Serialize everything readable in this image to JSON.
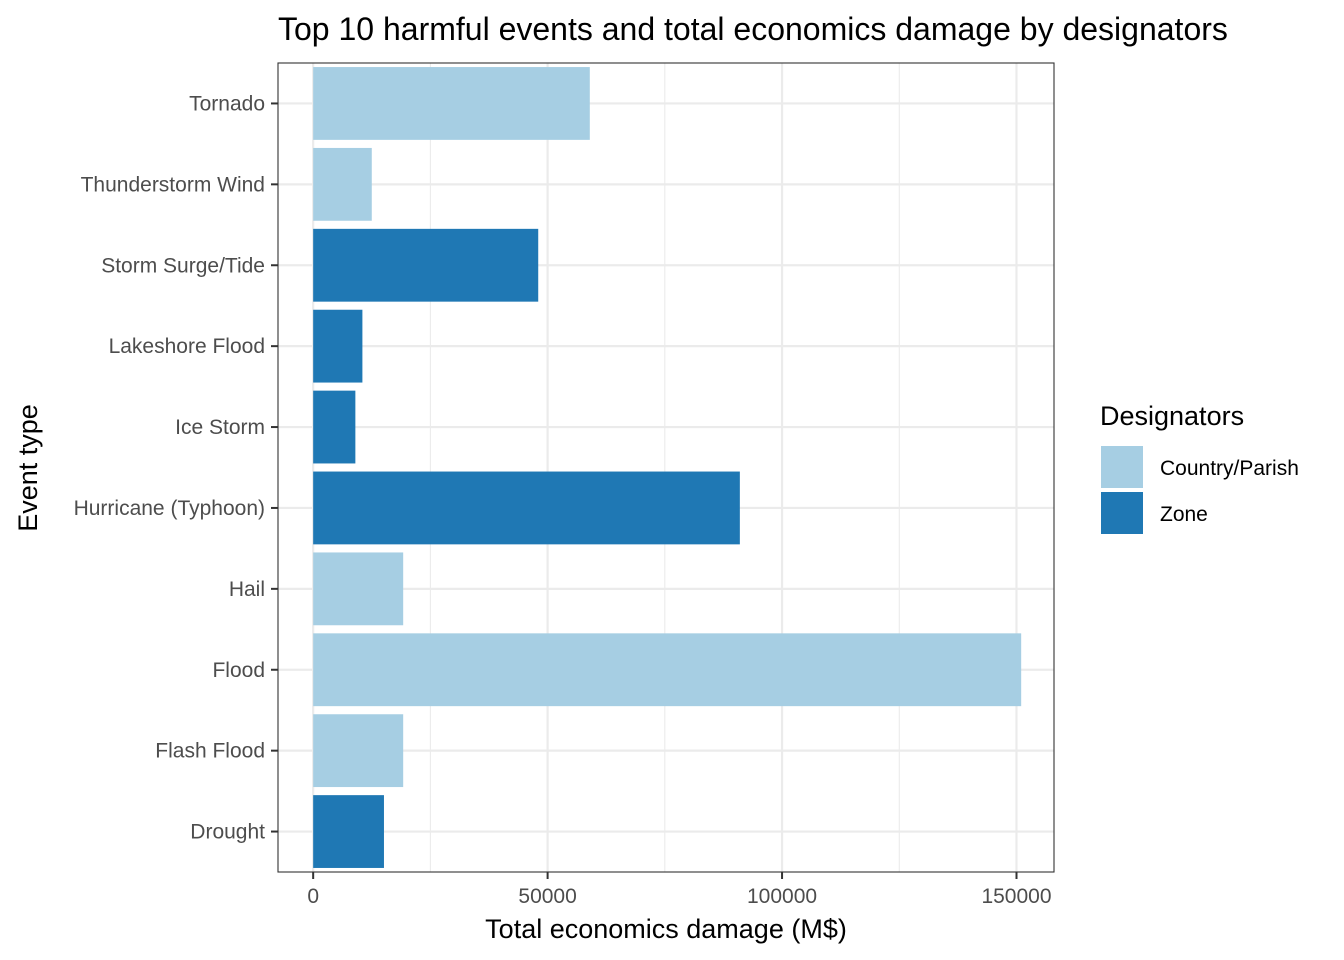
{
  "chart_data": {
    "type": "bar",
    "orientation": "horizontal",
    "title": "Top 10 harmful events and total economics damage by designators",
    "xlabel": "Total economics damage (M$)",
    "ylabel": "Event type",
    "xlim": [
      -7500,
      158000
    ],
    "x_ticks": [
      0,
      50000,
      100000,
      150000
    ],
    "x_tick_labels": [
      "0",
      "50000",
      "100000",
      "150000"
    ],
    "grid": true,
    "legend_position": "right",
    "legend": {
      "title": "Designators",
      "entries": [
        {
          "name": "Country/Parish",
          "color": "#a6cee3"
        },
        {
          "name": "Zone",
          "color": "#1f78b4"
        }
      ]
    },
    "categories": [
      "Tornado",
      "Thunderstorm Wind",
      "Storm Surge/Tide",
      "Lakeshore Flood",
      "Ice Storm",
      "Hurricane (Typhoon)",
      "Hail",
      "Flood",
      "Flash Flood",
      "Drought"
    ],
    "values": [
      59000,
      12500,
      48000,
      10500,
      9000,
      91000,
      19200,
      151000,
      19200,
      15100
    ],
    "groups": [
      "Country/Parish",
      "Country/Parish",
      "Zone",
      "Zone",
      "Zone",
      "Zone",
      "Country/Parish",
      "Country/Parish",
      "Country/Parish",
      "Zone"
    ]
  }
}
